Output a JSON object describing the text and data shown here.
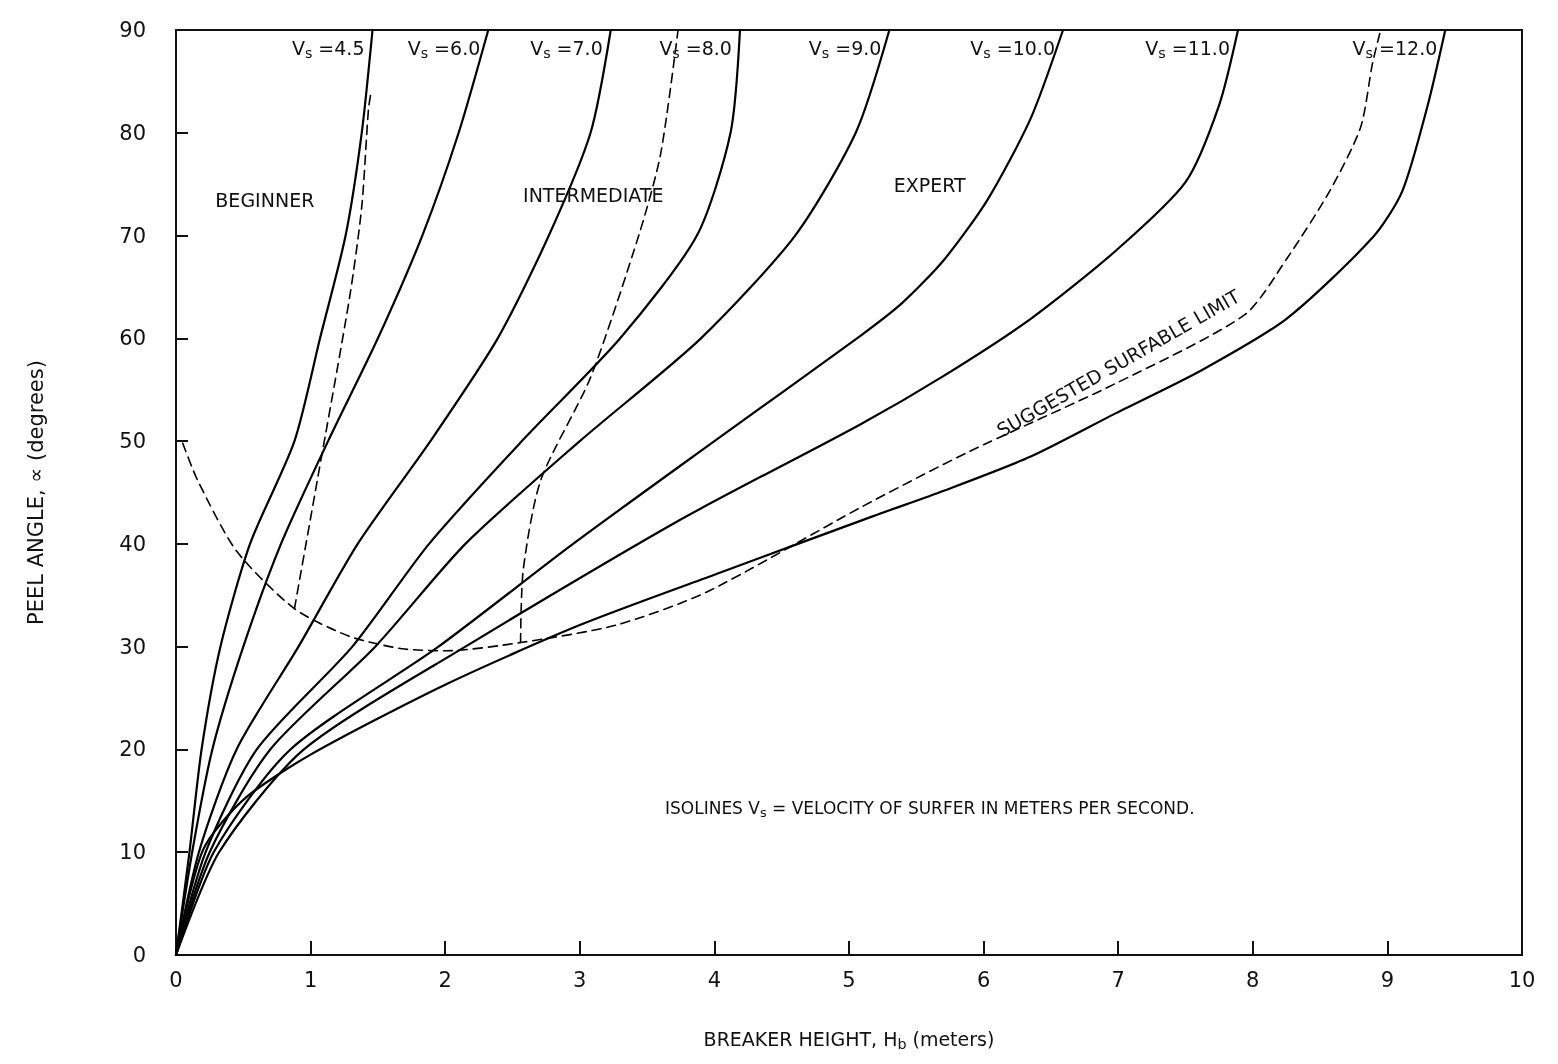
{
  "chart_data": {
    "type": "line",
    "xlabel": "BREAKER HEIGHT, H$_{b}$ (meters)",
    "ylabel": "PEEL ANGLE, ∝ (degrees)",
    "xlim": [
      0,
      10
    ],
    "xticks": [
      0,
      1,
      2,
      3,
      4,
      5,
      6,
      7,
      8,
      9,
      10
    ],
    "ylim": [
      0,
      90
    ],
    "yticks": [
      0,
      10,
      20,
      30,
      40,
      50,
      60,
      70,
      80,
      90
    ],
    "marker": "none",
    "line_style": "solid",
    "annotations": [
      "BEGINNER",
      "INTERMEDIATE",
      "EXPERT",
      "SUGGESTED SURFABLE LIMIT",
      "ISOLINES V$_{s}$ = VELOCITY OF SURFER IN METERS PER SECOND."
    ],
    "series": [
      {
        "name": "V$_{s}$ =4.5",
        "color": "#000000",
        "x": [
          0,
          0.1,
          0.19,
          0.33,
          0.55,
          0.88,
          1.07,
          1.26,
          1.38,
          1.46
        ],
        "values": [
          0,
          10,
          20,
          30,
          40,
          50,
          60,
          70,
          80,
          90
        ]
      },
      {
        "name": "V$_{s}$ =6.0",
        "color": "#000000",
        "x": [
          0,
          0.12,
          0.27,
          0.5,
          0.78,
          1.13,
          1.5,
          1.83,
          2.1,
          2.32
        ],
        "values": [
          0,
          10,
          20,
          30,
          40,
          50,
          60,
          70,
          80,
          90
        ]
      },
      {
        "name": "V$_{s}$ =7.0",
        "color": "#000000",
        "x": [
          0,
          0.17,
          0.45,
          0.91,
          1.35,
          1.89,
          2.39,
          2.77,
          3.08,
          3.23
        ],
        "values": [
          0,
          10,
          20,
          30,
          40,
          50,
          60,
          70,
          80,
          90
        ]
      },
      {
        "name": "V$_{s}$ =8.0",
        "color": "#000000",
        "x": [
          0,
          0.22,
          0.6,
          1.31,
          1.88,
          2.57,
          3.3,
          3.87,
          4.12,
          4.19
        ],
        "values": [
          0,
          10,
          20,
          30,
          40,
          50,
          60,
          70,
          80,
          90
        ]
      },
      {
        "name": "V$_{s}$ =9.0",
        "color": "#000000",
        "x": [
          0,
          0.25,
          0.7,
          1.48,
          2.15,
          3.0,
          3.9,
          4.6,
          5.05,
          5.3
        ],
        "values": [
          0,
          10,
          20,
          30,
          40,
          50,
          60,
          70,
          80,
          90
        ]
      },
      {
        "name": "V$_{s}$ =10.0",
        "color": "#000000",
        "x": [
          0,
          0.28,
          0.85,
          1.95,
          2.95,
          4.0,
          5.08,
          5.4,
          5.71,
          6.03,
          6.35,
          6.59
        ],
        "values": [
          0,
          10,
          20,
          30,
          40,
          50,
          60.2,
          63.5,
          67.7,
          73.5,
          81.4,
          90
        ]
      },
      {
        "name": "V$_{s}$ =11.0",
        "color": "#000000",
        "x": [
          0,
          0.32,
          0.95,
          2.15,
          3.74,
          5.08,
          5.71,
          6.35,
          6.98,
          7.5,
          7.75,
          7.89
        ],
        "values": [
          0,
          10,
          20,
          30,
          42.3,
          51.6,
          56.4,
          61.9,
          68.5,
          75.2,
          82.7,
          90
        ]
      },
      {
        "name": "V$_{s}$ =12.0",
        "color": "#000000",
        "x": [
          0,
          0.2,
          0.5,
          1,
          2,
          3,
          4,
          5.18,
          5.71,
          6.35,
          6.98,
          7.62,
          8.25,
          8.89,
          9.11,
          9.3,
          9.43
        ],
        "values": [
          0,
          10.2,
          15.1,
          19.5,
          26.3,
          32.1,
          37,
          42.7,
          45.2,
          48.5,
          52.7,
          56.9,
          61.9,
          69.8,
          74.3,
          82.7,
          90
        ]
      },
      {
        "color": "#000000",
        "line_style": "dashed",
        "x": [
          0.05,
          0.16,
          0.45,
          0.88,
          1.29,
          1.68,
          2.01,
          2.56,
          3.27,
          3.94,
          5.08,
          5.88,
          6.98,
          7.94,
          8.25,
          8.57,
          8.8,
          8.89,
          8.95
        ],
        "values": [
          49.8,
          46.2,
          39.3,
          33.7,
          31.0,
          29.8,
          29.6,
          30.4,
          32.1,
          35.3,
          43.5,
          48.9,
          55.6,
          62.3,
          67.7,
          74.3,
          80.5,
          86.8,
          90
        ]
      },
      {
        "color": "#000000",
        "line_style": "dashed",
        "x": [
          0.88,
          1.05,
          1.29,
          1.38,
          1.43,
          1.45
        ],
        "values": [
          33.7,
          46.2,
          64,
          72.8,
          82.3,
          84
        ]
      },
      {
        "color": "#000000",
        "line_style": "dashed",
        "x": [
          2.56,
          2.58,
          2.71,
          3.08,
          3.44,
          3.6,
          3.73
        ],
        "values": [
          30.4,
          37.5,
          46.2,
          56.2,
          70.1,
          77.9,
          90
        ]
      }
    ]
  }
}
